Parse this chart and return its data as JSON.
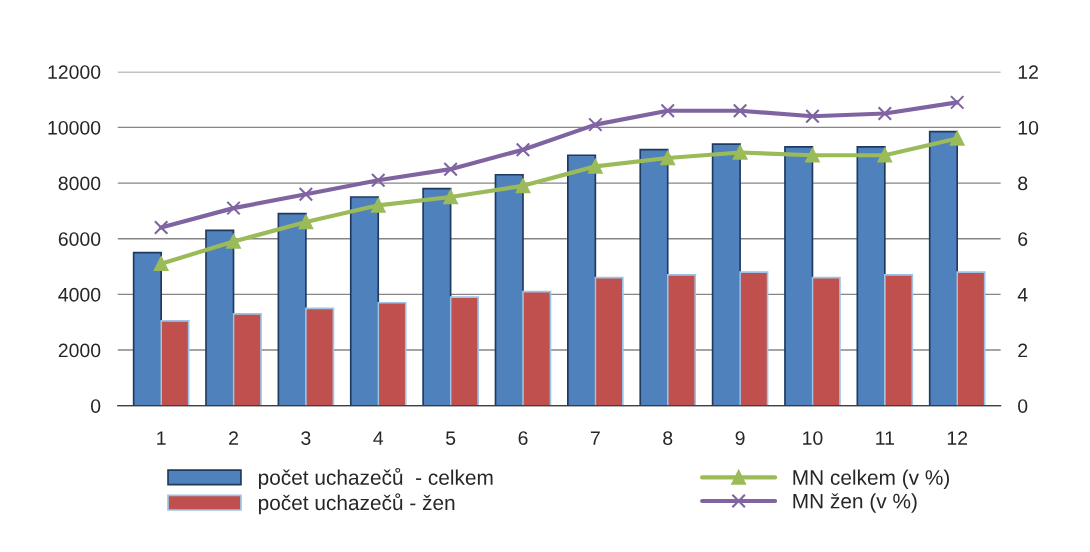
{
  "chart_data": {
    "type": "bar",
    "categories": [
      "1",
      "2",
      "3",
      "4",
      "5",
      "6",
      "7",
      "8",
      "9",
      "10",
      "11",
      "12"
    ],
    "series": [
      {
        "name": "počet uchazečů  - celkem",
        "color": "#4f81bd",
        "values": [
          5500,
          6300,
          6900,
          7500,
          7800,
          8300,
          9000,
          9200,
          9400,
          9300,
          9300,
          9850
        ]
      },
      {
        "name": "počet uchazečů - žen",
        "color": "#c0504d",
        "values": [
          3050,
          3300,
          3500,
          3700,
          3900,
          4100,
          4600,
          4700,
          4800,
          4600,
          4700,
          4800
        ]
      },
      {
        "name": "MN celkem (v %)",
        "type": "line",
        "axis": "y2",
        "marker": "triangle",
        "color": "#9bbb59",
        "values": [
          5.1,
          5.9,
          6.6,
          7.2,
          7.5,
          7.9,
          8.6,
          8.9,
          9.1,
          9.0,
          9.0,
          9.6
        ]
      },
      {
        "name": "MN žen (v %)",
        "type": "line",
        "axis": "y2",
        "marker": "cross",
        "color": "#8064a2",
        "values": [
          6.4,
          7.1,
          7.6,
          8.1,
          8.5,
          9.2,
          10.1,
          10.6,
          10.6,
          10.4,
          10.5,
          10.9
        ]
      }
    ],
    "ylim": [
      0,
      12000
    ],
    "yticks": [
      0,
      2000,
      4000,
      6000,
      8000,
      10000,
      12000
    ],
    "y2lim": [
      0,
      12
    ],
    "y2ticks": [
      0,
      2,
      4,
      6,
      8,
      10,
      12
    ],
    "grid": "y",
    "legend": "bottom"
  }
}
